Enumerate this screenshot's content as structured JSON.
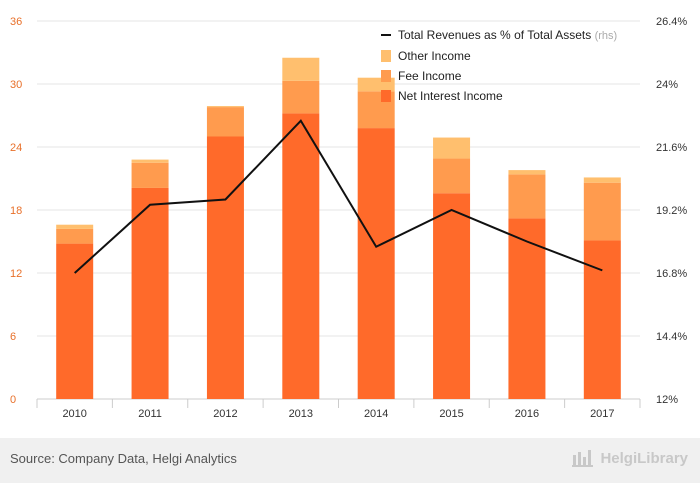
{
  "chart_data": {
    "type": "bar",
    "stacked": true,
    "categories": [
      "2010",
      "2011",
      "2012",
      "2013",
      "2014",
      "2015",
      "2016",
      "2017"
    ],
    "series": [
      {
        "name": "Net Interest Income",
        "color": "#ff6a2a",
        "values": [
          14.8,
          20.1,
          25.0,
          27.2,
          25.8,
          19.6,
          17.2,
          15.1
        ]
      },
      {
        "name": "Fee Income",
        "color": "#ff9b4e",
        "values": [
          1.4,
          2.4,
          2.8,
          3.1,
          3.5,
          3.3,
          4.2,
          5.5
        ]
      },
      {
        "name": "Other Income",
        "color": "#ffbf6e",
        "values": [
          0.4,
          0.3,
          0.1,
          2.2,
          1.3,
          2.0,
          0.4,
          0.5
        ]
      }
    ],
    "line": {
      "name": "Total Revenues as % of Total Assets",
      "suffix": "(rhs)",
      "color": "#111111",
      "values": [
        16.8,
        19.4,
        19.6,
        22.6,
        17.8,
        19.2,
        18.0,
        16.9
      ]
    },
    "left_axis": {
      "min": 0,
      "max": 36,
      "ticks": [
        "0",
        "6",
        "12",
        "18",
        "24",
        "30",
        "36"
      ]
    },
    "right_axis": {
      "min": 12,
      "max": 26.4,
      "ticks": [
        "12%",
        "14.4%",
        "16.8%",
        "19.2%",
        "21.6%",
        "24%",
        "26.4%"
      ]
    },
    "legend_position": "top-right",
    "axis_color": "#e8702a"
  },
  "footer": {
    "source": "Source: Company Data, Helgi Analytics",
    "brand": "HelgiLibrary"
  }
}
